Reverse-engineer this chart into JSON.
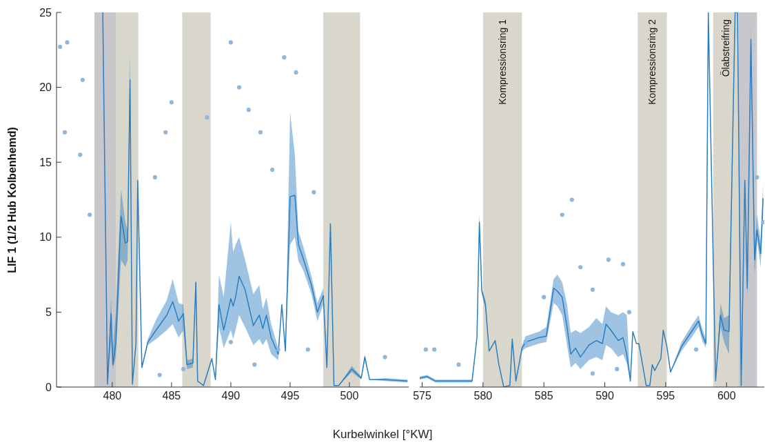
{
  "chart_data": [
    {
      "type": "line",
      "xlabel": "Kurbelwinkel [°KW]",
      "ylabel": "LIF 1  (1/2 Hub Kolbenhemd)",
      "xlim": [
        475.3,
        505
      ],
      "ylim": [
        0,
        25
      ],
      "xticks": [
        480,
        485,
        490,
        495,
        500
      ],
      "yticks": [
        0,
        5,
        10,
        15,
        20,
        25
      ],
      "bands": [
        {
          "axis": "x",
          "from": 478.5,
          "to": 480.3,
          "color": "#c8c8cc"
        },
        {
          "axis": "x",
          "from": 480.3,
          "to": 482.2,
          "color": "#d9d7cc"
        },
        {
          "axis": "x",
          "from": 485.9,
          "to": 488.3,
          "color": "#d9d7cc"
        },
        {
          "axis": "x",
          "from": 497.8,
          "to": 500.9,
          "color": "#d9d7cc"
        }
      ],
      "series": [
        {
          "type": "scatter",
          "color": "#8fb6dc",
          "marker": "circle",
          "x": [
            475.6,
            476.2,
            476,
            477.3,
            477.5,
            478.1,
            483.6,
            484.5,
            485,
            488,
            490,
            490.7,
            491.5,
            492.5,
            493.5,
            494.5,
            495.5,
            497,
            490,
            492,
            494,
            496.5,
            503,
            484,
            486
          ],
          "values": [
            22.7,
            23,
            17,
            15.5,
            20.5,
            11.5,
            14,
            17,
            19,
            18,
            23,
            20,
            18.5,
            17,
            14.5,
            22,
            21,
            13,
            3,
            1.5,
            2.5,
            2.5,
            2,
            0.8,
            1.2
          ]
        },
        {
          "type": "line",
          "color": "#2a7dc0",
          "marker": "none",
          "x": [
            479.2,
            479.6,
            479.9,
            480.05,
            480.3,
            480.7,
            480.75,
            481.1,
            481.3,
            481.5,
            481.7,
            482,
            482.15,
            482.5,
            483,
            483.7,
            484.6,
            485.1,
            485.6,
            486,
            486.3,
            486.8,
            487.05,
            487.2,
            487.7,
            488.4,
            488.7,
            489,
            489.4,
            490,
            490.2,
            490.4,
            490.7,
            491.2,
            491.9,
            492.4,
            492.7,
            493,
            493.4,
            494,
            494.3,
            494.6,
            495,
            495.4,
            495.7,
            496.1,
            496.8,
            497.3,
            497.8,
            498.1,
            498.4,
            498.7,
            499.1,
            500.2,
            501,
            501.3,
            501.7,
            503,
            504.9
          ],
          "values": [
            25,
            0.2,
            4.9,
            1.5,
            2.9,
            10.8,
            11.4,
            9.6,
            9.7,
            20.5,
            0.2,
            2.9,
            13.8,
            1.3,
            3,
            3.8,
            4.8,
            5.7,
            4.4,
            4.9,
            1.5,
            1.6,
            7,
            0.4,
            0.1,
            1.9,
            0.5,
            5.5,
            3.8,
            5.9,
            5.4,
            6,
            7.4,
            6.5,
            4.1,
            4.8,
            3.9,
            4.8,
            3.3,
            2.2,
            5.5,
            2.4,
            12.7,
            12.8,
            9.5,
            8.6,
            6.8,
            5,
            6.1,
            1.3,
            10.9,
            0.1,
            0.1,
            1.2,
            0.6,
            2,
            0.5,
            0.5,
            0.4
          ],
          "lower": [
            25,
            0.2,
            3,
            1.2,
            2,
            8,
            8.5,
            8,
            8.5,
            20.5,
            0.2,
            2.9,
            13.8,
            1.3,
            2.8,
            3.2,
            3.8,
            4.2,
            3.3,
            3.8,
            1.2,
            1.3,
            7,
            0.4,
            0.1,
            1.9,
            0.5,
            4,
            2.6,
            3.8,
            3.2,
            3.8,
            4.8,
            4,
            2.8,
            3.2,
            2.8,
            3.2,
            2.2,
            1.8,
            5.5,
            2.4,
            9.5,
            10,
            8.4,
            7.8,
            6.2,
            4.4,
            5.5,
            1.3,
            10.9,
            0.1,
            0.1,
            1,
            0.5,
            1.8,
            0.5,
            0.4,
            0.3
          ],
          "upper": [
            25,
            0.2,
            6,
            2.5,
            5,
            12.5,
            13.2,
            11,
            10.5,
            22.5,
            0.2,
            2.9,
            13.8,
            1.3,
            3.2,
            4.5,
            5.8,
            7.2,
            5.6,
            5.5,
            1.8,
            1.9,
            7.2,
            0.4,
            0.1,
            1.9,
            0.5,
            7.5,
            6,
            11,
            9,
            9.5,
            10,
            8.5,
            6.2,
            6.8,
            5.2,
            6,
            4.2,
            2.6,
            5.5,
            2.4,
            18.3,
            15.5,
            10.4,
            9.4,
            7.4,
            5.6,
            6.6,
            1.3,
            10.9,
            0.1,
            0.1,
            1.4,
            0.7,
            2.2,
            0.5,
            0.6,
            0.5
          ]
        }
      ]
    },
    {
      "type": "line",
      "tick_labels": "x",
      "xlim": [
        574.8,
        603.1
      ],
      "ylim": [
        0,
        25
      ],
      "xticks": [
        575,
        580,
        585,
        590,
        595,
        600
      ],
      "yticks": [
        0,
        5,
        10,
        15,
        20,
        25
      ],
      "bands": [
        {
          "axis": "x",
          "from": 580,
          "to": 583.2,
          "color": "#d9d7cc",
          "label": "Kompressionsring 1"
        },
        {
          "axis": "x",
          "from": 592.7,
          "to": 595.1,
          "color": "#d9d7cc",
          "label": "Kompressionsring 2"
        },
        {
          "axis": "x",
          "from": 598.9,
          "to": 601,
          "color": "#d9d7cc",
          "label": "Ölabstreifring"
        },
        {
          "axis": "x",
          "from": 601,
          "to": 602.5,
          "color": "#c8c8cc"
        }
      ],
      "series": [
        {
          "type": "scatter",
          "color": "#8fb6dc",
          "marker": "circle",
          "x": [
            575.3,
            576,
            578,
            583.5,
            585,
            586.5,
            587.3,
            588,
            589,
            590.3,
            591.5,
            592,
            589,
            591,
            597.5,
            602.5,
            603
          ],
          "values": [
            2.5,
            2.5,
            1.5,
            3,
            6,
            11.5,
            12.5,
            8,
            6.5,
            8.5,
            8.2,
            5,
            0.9,
            1.2,
            2.5,
            14,
            11
          ]
        },
        {
          "type": "line",
          "color": "#2a7dc0",
          "marker": "none",
          "x": [
            574.8,
            575.4,
            576.1,
            579.1,
            579.5,
            579.7,
            579.9,
            580.2,
            580.5,
            581,
            581.3,
            581.7,
            582.2,
            582.4,
            582.7,
            583.2,
            583.5,
            584.6,
            585.2,
            585.8,
            586.1,
            586.5,
            586.9,
            587.2,
            587.6,
            588,
            588.7,
            589.3,
            589.8,
            590.1,
            590.5,
            591.1,
            591.5,
            591.8,
            592.1,
            592.3,
            592.6,
            592.8,
            593.4,
            593.7,
            593.9,
            594.1,
            594.6,
            594.8,
            595.1,
            595.4,
            596.3,
            597.2,
            597.7,
            598,
            598.3,
            598.5,
            599.1,
            599.5,
            599.8,
            600.2,
            600.7,
            600.9,
            601.2,
            601.5,
            601.7,
            602,
            602.3,
            602.5,
            602.8,
            603
          ],
          "values": [
            0.6,
            0.7,
            0.4,
            0.4,
            3.3,
            11,
            6.4,
            5.5,
            2.4,
            3.1,
            1.5,
            0,
            0.1,
            3.2,
            0.4,
            2.6,
            3,
            3.3,
            3.4,
            6.6,
            6.4,
            6,
            4,
            2.2,
            2.6,
            2,
            2.8,
            3.1,
            2.9,
            4.2,
            3.8,
            3.1,
            3.3,
            2.2,
            0.4,
            3.7,
            2.9,
            2.9,
            0.1,
            0.1,
            1.5,
            1.1,
            1.9,
            3.8,
            2.7,
            1,
            2.7,
            3.8,
            4.4,
            3.5,
            2.9,
            25,
            0.4,
            4.8,
            3.8,
            3.7,
            25,
            25,
            0.1,
            13.8,
            6.6,
            23.2,
            8.5,
            10.5,
            8.9,
            12.6
          ],
          "lower": [
            0.5,
            0.6,
            0.3,
            0.3,
            3.3,
            10.5,
            6.2,
            5.2,
            2.4,
            3.1,
            1.5,
            0,
            0.1,
            3.2,
            0.4,
            2.4,
            2.6,
            2.9,
            3,
            5.6,
            5.4,
            4.8,
            2.8,
            1.3,
            1.6,
            1.2,
            1.8,
            2,
            1.8,
            2.8,
            2.6,
            2,
            2.2,
            1.6,
            0.4,
            3.7,
            2.9,
            2.9,
            0.1,
            0.1,
            1.5,
            1.1,
            1.9,
            3.8,
            2.7,
            1,
            2.4,
            3.4,
            4,
            3.1,
            2.6,
            25,
            0.4,
            4,
            3,
            2.2,
            25,
            25,
            0.1,
            13.8,
            5.8,
            22,
            7.5,
            9.8,
            8,
            11.5
          ],
          "upper": [
            0.7,
            0.8,
            0.5,
            0.5,
            3.3,
            11.6,
            6.6,
            5.8,
            2.4,
            3.1,
            1.5,
            0,
            0.1,
            3.2,
            0.4,
            2.8,
            3.4,
            3.7,
            4,
            7.2,
            7.5,
            7,
            5.5,
            3.6,
            3.8,
            3.6,
            4,
            4.6,
            4.2,
            5.4,
            5,
            4.8,
            5,
            4.8,
            0.4,
            3.7,
            2.9,
            2.9,
            0.1,
            0.1,
            1.5,
            1.1,
            1.9,
            3.8,
            2.7,
            1,
            3,
            4.2,
            4.8,
            3.9,
            3.2,
            25,
            0.4,
            5.6,
            4.6,
            4.8,
            25,
            25,
            0.1,
            13.8,
            7.4,
            24,
            9.5,
            11.5,
            9.8,
            13.6
          ]
        }
      ]
    }
  ]
}
